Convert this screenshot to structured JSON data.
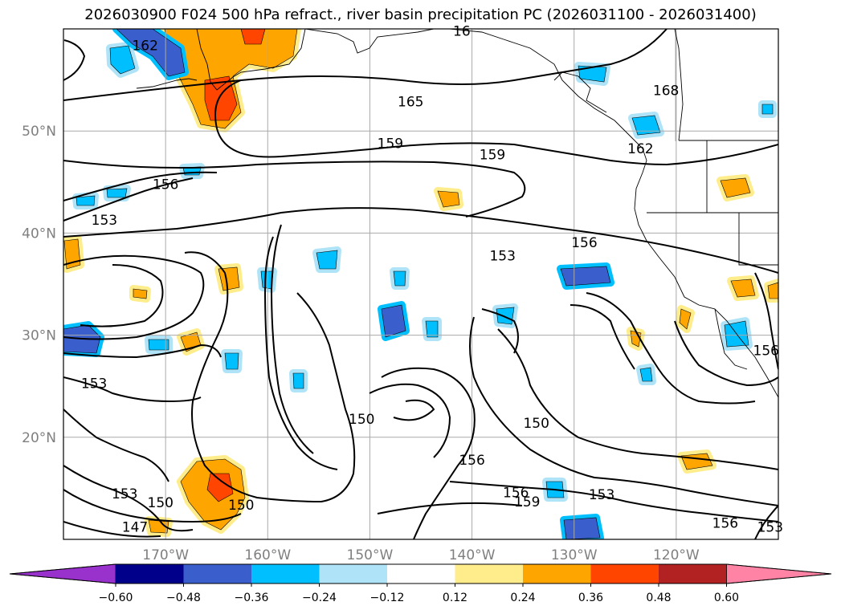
{
  "title": "2026030900 F024 500 hPa refract., river basin precipitation PC (2026031100 - 2026031400)",
  "map": {
    "lon_range": [
      -180,
      -110
    ],
    "lat_range": [
      10,
      60
    ],
    "lon_ticks": [
      {
        "lon": -170,
        "label": "170°W"
      },
      {
        "lon": -160,
        "label": "160°W"
      },
      {
        "lon": -150,
        "label": "150°W"
      },
      {
        "lon": -140,
        "label": "140°W"
      },
      {
        "lon": -130,
        "label": "130°W"
      },
      {
        "lon": -120,
        "label": "120°W"
      }
    ],
    "lat_ticks": [
      {
        "lat": 50,
        "label": "50°N"
      },
      {
        "lat": 40,
        "label": "40°N"
      },
      {
        "lat": 30,
        "label": "30°N"
      },
      {
        "lat": 20,
        "label": "20°N"
      }
    ],
    "gridlines": true
  },
  "contour_labels": [
    {
      "text": "162",
      "lon": -172,
      "lat": 58.4
    },
    {
      "text": "16",
      "lon": -141,
      "lat": 59.8
    },
    {
      "text": "165",
      "lon": -146,
      "lat": 52.9
    },
    {
      "text": "168",
      "lon": -121,
      "lat": 54
    },
    {
      "text": "159",
      "lon": -148,
      "lat": 48.8
    },
    {
      "text": "159",
      "lon": -138,
      "lat": 47.7
    },
    {
      "text": "162",
      "lon": -123.5,
      "lat": 48.3
    },
    {
      "text": "156",
      "lon": -170,
      "lat": 44.8
    },
    {
      "text": "153",
      "lon": -176,
      "lat": 41.3
    },
    {
      "text": "156",
      "lon": -129,
      "lat": 39.1
    },
    {
      "text": "153",
      "lon": -137,
      "lat": 37.8
    },
    {
      "text": "153",
      "lon": -177,
      "lat": 25.3
    },
    {
      "text": "150",
      "lon": -150.8,
      "lat": 21.8
    },
    {
      "text": "150",
      "lon": -133.7,
      "lat": 21.4
    },
    {
      "text": "156",
      "lon": -140,
      "lat": 17.8
    },
    {
      "text": "153",
      "lon": -174,
      "lat": 14.5
    },
    {
      "text": "150",
      "lon": -170.5,
      "lat": 13.6
    },
    {
      "text": "150",
      "lon": -162.6,
      "lat": 13.4
    },
    {
      "text": "156",
      "lon": -135.7,
      "lat": 14.6
    },
    {
      "text": "159",
      "lon": -134.6,
      "lat": 13.7
    },
    {
      "text": "153",
      "lon": -127.3,
      "lat": 14.4
    },
    {
      "text": "147",
      "lon": -173,
      "lat": 11.2
    },
    {
      "text": "156",
      "lon": -115.2,
      "lat": 11.6
    },
    {
      "text": "153",
      "lon": -110.8,
      "lat": 11.2
    },
    {
      "text": "156",
      "lon": -111.2,
      "lat": 28.5
    }
  ],
  "colorbar": {
    "colors": [
      "#9932cc",
      "#00008b",
      "#3a5fcd",
      "#00bfff",
      "#afe4f8",
      "#ffffff",
      "#ffec8b",
      "#ffa500",
      "#ff4500",
      "#b22222",
      "#ff83a5"
    ],
    "tick_labels": [
      "−0.60",
      "−0.48",
      "−0.36",
      "−0.24",
      "−0.12",
      "0.12",
      "0.24",
      "0.36",
      "0.48",
      "0.60"
    ],
    "levels": [
      -0.6,
      -0.48,
      -0.36,
      -0.24,
      -0.12,
      0.12,
      0.24,
      0.36,
      0.48,
      0.6
    ],
    "extend": "both"
  }
}
